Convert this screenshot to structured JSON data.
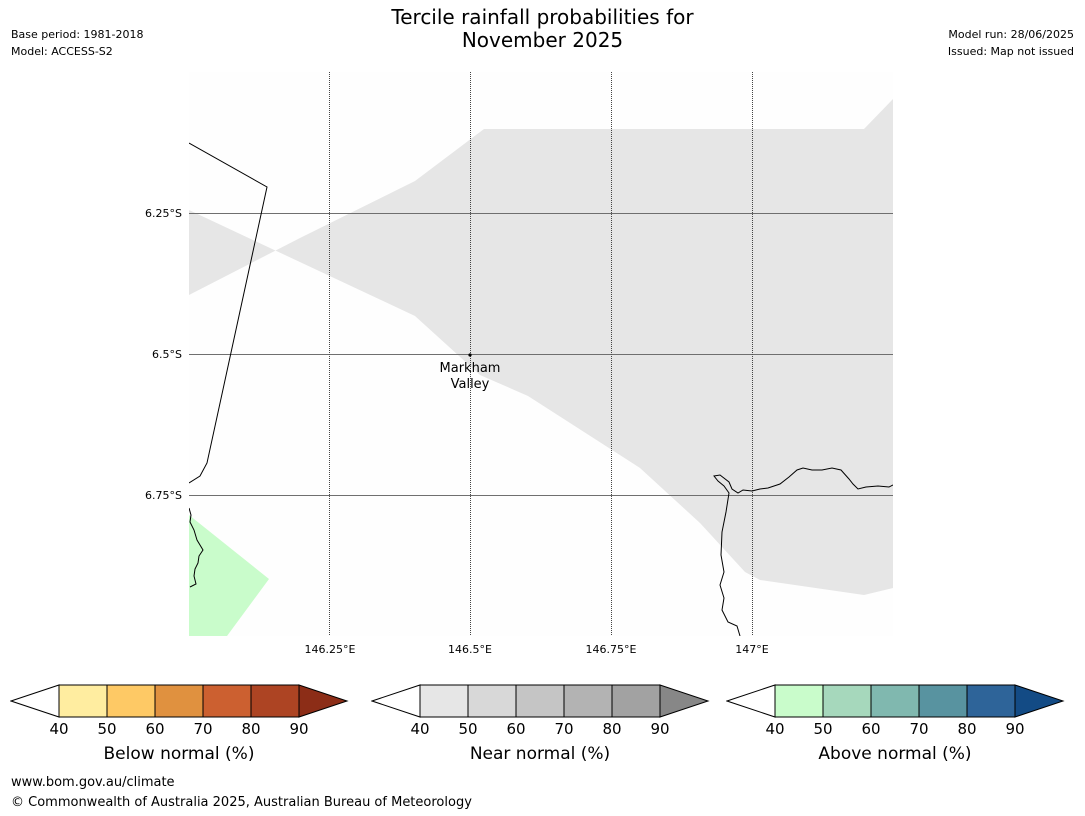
{
  "header": {
    "title_line1": "Tercile rainfall probabilities for",
    "title_line2": "November 2025",
    "base_period": "Base period: 1981-2018",
    "model": "Model: ACCESS-S2",
    "model_run": "Model run: 28/06/2025",
    "issued": "Issued: Map not issued"
  },
  "map": {
    "lat_labels": [
      "6.25°S",
      "6.5°S",
      "6.75°S"
    ],
    "lon_labels": [
      "146.25°E",
      "146.5°E",
      "146.75°E",
      "147°E"
    ],
    "place": {
      "name_line1": "Markham",
      "name_line2": "Valley"
    },
    "colors": {
      "near_normal_40_50": "#e6e6e6",
      "above_normal_40_50": "#c9fccb"
    }
  },
  "colorbars": [
    {
      "label": "Below normal (%)",
      "ticks": [
        "40",
        "50",
        "60",
        "70",
        "80",
        "90"
      ],
      "colors": [
        "#ffeda0",
        "#fec965",
        "#e0913f",
        "#cc6030",
        "#ad4423",
        "#8c2d17"
      ]
    },
    {
      "label": "Near normal (%)",
      "ticks": [
        "40",
        "50",
        "60",
        "70",
        "80",
        "90"
      ],
      "colors": [
        "#e6e6e6",
        "#d8d8d8",
        "#c5c5c5",
        "#b3b3b3",
        "#a2a2a2",
        "#878787"
      ]
    },
    {
      "label": "Above normal (%)",
      "ticks": [
        "40",
        "50",
        "60",
        "70",
        "80",
        "90"
      ],
      "colors": [
        "#c9fccb",
        "#a6d8bc",
        "#80b8af",
        "#5893a0",
        "#2e6499",
        "#134b85"
      ]
    }
  ],
  "footer": {
    "url": "www.bom.gov.au/climate",
    "copyright": "© Commonwealth of Australia 2025, Australian Bureau of Meteorology"
  }
}
